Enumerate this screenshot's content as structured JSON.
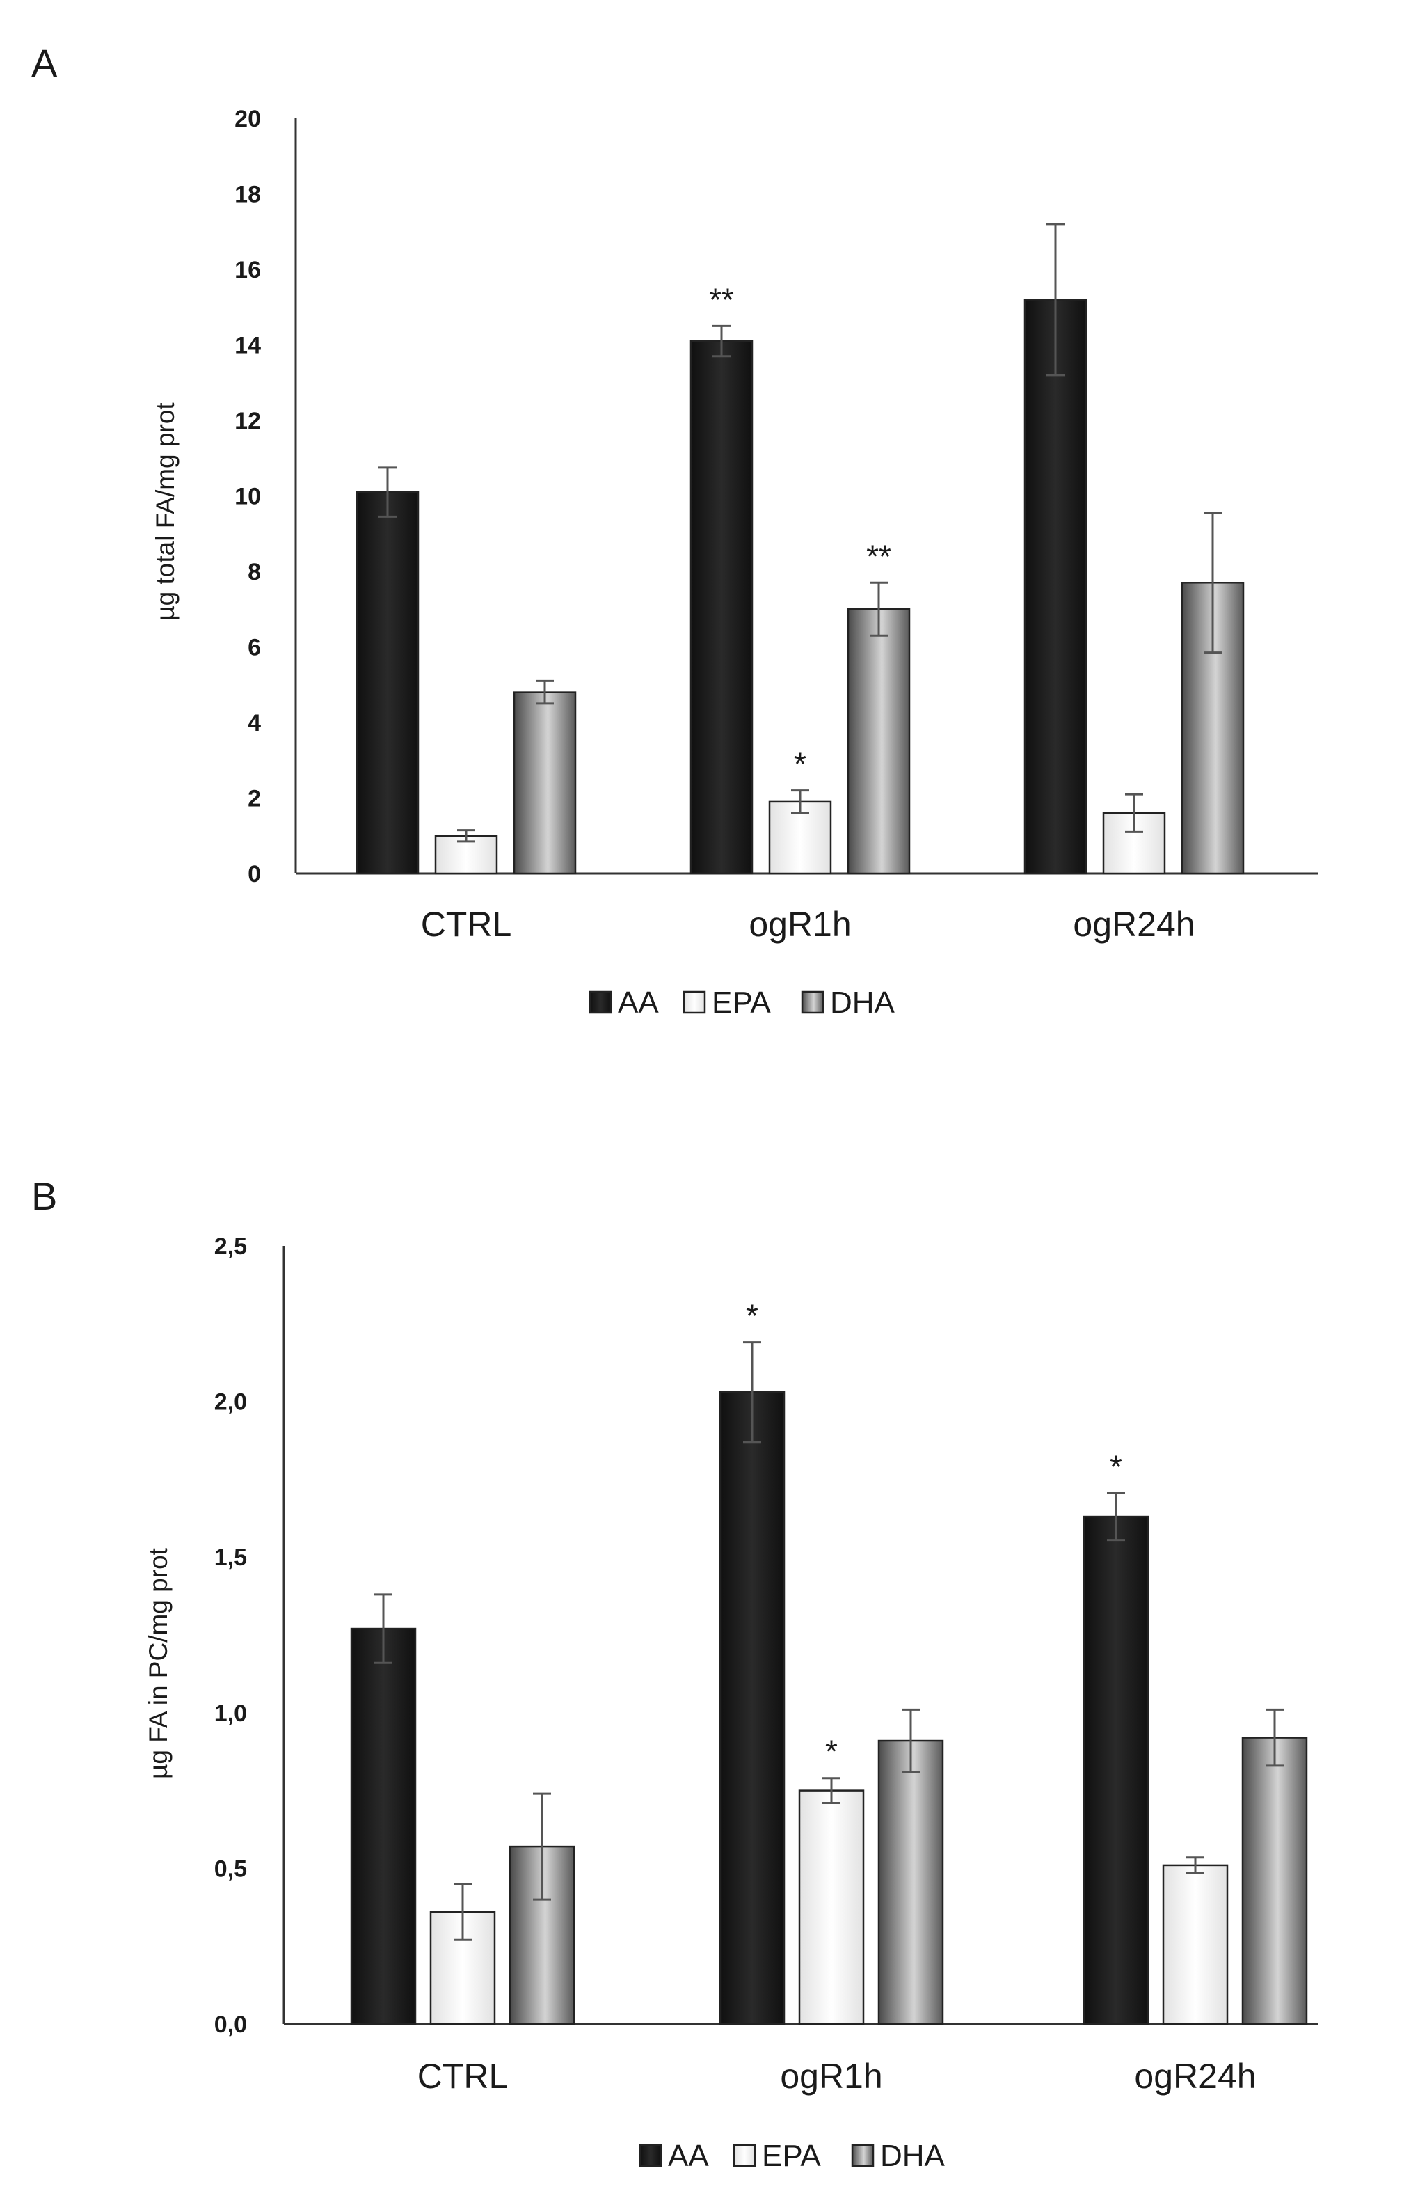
{
  "chart_data": [
    {
      "type": "bar",
      "panel": "A",
      "title": "",
      "xlabel": "",
      "ylabel": "µg total  FA/mg prot",
      "ylim": [
        0,
        20
      ],
      "yticks": [
        "0",
        "2",
        "4",
        "6",
        "8",
        "10",
        "12",
        "14",
        "16",
        "18",
        "20"
      ],
      "yticks_values": [
        0,
        2,
        4,
        6,
        8,
        10,
        12,
        14,
        16,
        18,
        20
      ],
      "categories": [
        "CTRL",
        "ogR1h",
        "ogR24h"
      ],
      "series": [
        {
          "name": "AA",
          "values": [
            10.1,
            14.1,
            15.2
          ],
          "errors": [
            0.65,
            0.4,
            2.0
          ],
          "sig": [
            "",
            "**",
            ""
          ],
          "color": "#1c1c1c"
        },
        {
          "name": "EPA",
          "values": [
            1.0,
            1.9,
            1.6
          ],
          "errors": [
            0.15,
            0.3,
            0.5
          ],
          "sig": [
            "",
            "*",
            ""
          ],
          "color": "#f2f2f2"
        },
        {
          "name": "DHA",
          "values": [
            4.8,
            7.0,
            7.7
          ],
          "errors": [
            0.3,
            0.7,
            1.85
          ],
          "sig": [
            "",
            "**",
            ""
          ],
          "color": "#8c8c8c"
        }
      ],
      "legend_position": "bottom"
    },
    {
      "type": "bar",
      "panel": "B",
      "title": "",
      "xlabel": "",
      "ylabel": "µg FA in PC/mg prot",
      "ylim": [
        0,
        2.5
      ],
      "yticks": [
        "0,0",
        "0,5",
        "1,0",
        "1,5",
        "2,0",
        "2,5"
      ],
      "yticks_values": [
        0,
        0.5,
        1.0,
        1.5,
        2.0,
        2.5
      ],
      "categories": [
        "CTRL",
        "ogR1h",
        "ogR24h"
      ],
      "series": [
        {
          "name": "AA",
          "values": [
            1.27,
            2.03,
            1.63
          ],
          "errors": [
            0.11,
            0.16,
            0.075
          ],
          "sig": [
            "",
            "*",
            "*"
          ],
          "color": "#1c1c1c"
        },
        {
          "name": "EPA",
          "values": [
            0.36,
            0.75,
            0.51
          ],
          "errors": [
            0.09,
            0.04,
            0.025
          ],
          "sig": [
            "",
            "*",
            ""
          ],
          "color": "#f2f2f2"
        },
        {
          "name": "DHA",
          "values": [
            0.57,
            0.91,
            0.92
          ],
          "errors": [
            0.17,
            0.1,
            0.09
          ],
          "sig": [
            "",
            "",
            ""
          ],
          "color": "#8c8c8c"
        }
      ],
      "legend_position": "bottom"
    }
  ]
}
